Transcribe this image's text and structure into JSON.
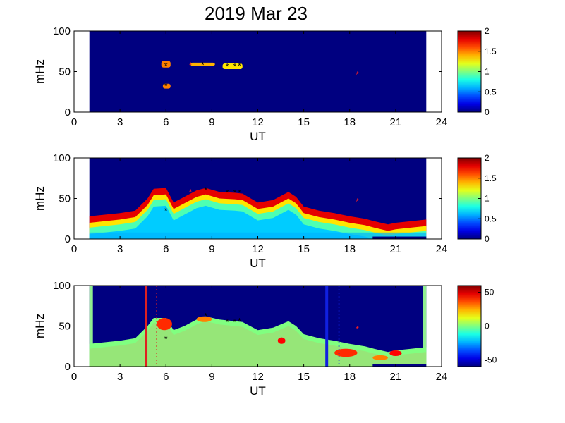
{
  "title": "2019 Mar 23",
  "chart_data": [
    {
      "type": "heatmap",
      "xlabel": "UT",
      "ylabel": "mHz",
      "xlim": [
        0,
        24
      ],
      "ylim": [
        0,
        100
      ],
      "xticks": [
        0,
        3,
        6,
        9,
        12,
        15,
        18,
        21,
        24
      ],
      "yticks": [
        0,
        50,
        100
      ],
      "data_extent_x": [
        1,
        23
      ],
      "colorbar": {
        "range": [
          0,
          2
        ],
        "ticks": [
          0,
          0.5,
          1,
          1.5,
          2
        ]
      },
      "background_level": 0,
      "features": [
        {
          "x0": 5.7,
          "x1": 6.3,
          "y0": 55,
          "y1": 63,
          "level": 1.5
        },
        {
          "x0": 5.8,
          "x1": 6.3,
          "y0": 29,
          "y1": 35,
          "level": 1.5
        },
        {
          "x0": 7.6,
          "x1": 9.2,
          "y0": 57,
          "y1": 61,
          "level": 1.4
        },
        {
          "x0": 9.7,
          "x1": 11.0,
          "y0": 53,
          "y1": 60,
          "level": 1.3
        }
      ],
      "markers_black": [
        [
          6.0,
          57
        ],
        [
          6.0,
          32
        ],
        [
          8.4,
          58
        ],
        [
          10.0,
          56
        ],
        [
          10.5,
          56
        ],
        [
          10.8,
          57
        ]
      ],
      "markers_red": [
        [
          7.6,
          58
        ],
        [
          18.5,
          46
        ]
      ]
    },
    {
      "type": "heatmap",
      "xlabel": "UT",
      "ylabel": "mHz",
      "xlim": [
        0,
        24
      ],
      "ylim": [
        0,
        100
      ],
      "xticks": [
        0,
        3,
        6,
        9,
        12,
        15,
        18,
        21,
        24
      ],
      "yticks": [
        0,
        50,
        100
      ],
      "data_extent_x": [
        1,
        23
      ],
      "colorbar": {
        "range": [
          0,
          2
        ],
        "ticks": [
          0,
          0.5,
          1,
          1.5,
          2
        ]
      },
      "background_level": 0,
      "upper_boundary": [
        [
          1,
          28
        ],
        [
          2,
          30
        ],
        [
          3,
          32
        ],
        [
          4,
          35
        ],
        [
          4.8,
          50
        ],
        [
          5.2,
          62
        ],
        [
          6,
          63
        ],
        [
          6.5,
          45
        ],
        [
          7.2,
          52
        ],
        [
          8,
          60
        ],
        [
          8.6,
          63
        ],
        [
          9.5,
          58
        ],
        [
          10.5,
          57
        ],
        [
          11,
          56
        ],
        [
          12,
          45
        ],
        [
          13,
          48
        ],
        [
          14,
          58
        ],
        [
          14.5,
          52
        ],
        [
          15,
          40
        ],
        [
          16,
          35
        ],
        [
          17,
          32
        ],
        [
          18,
          28
        ],
        [
          19,
          25
        ],
        [
          19.6,
          22
        ],
        [
          20.5,
          18
        ],
        [
          21,
          20
        ],
        [
          22,
          22
        ],
        [
          23,
          24
        ]
      ],
      "layer_levels": [
        1.8,
        1.3,
        0.9,
        0.65
      ],
      "layer_depths": [
        8,
        14,
        22
      ],
      "low_band": {
        "y0": 0,
        "y1": 8,
        "level": 0.6
      },
      "bottom_bar": {
        "x0": 19.5,
        "x1": 23,
        "y0": 0,
        "y1": 3,
        "level": 0
      },
      "markers_black": [
        [
          6.0,
          35
        ],
        [
          8.6,
          60
        ],
        [
          10.0,
          57
        ],
        [
          10.5,
          57
        ],
        [
          10.8,
          57
        ]
      ],
      "markers_red": [
        [
          7.6,
          58
        ],
        [
          18.5,
          46
        ]
      ]
    },
    {
      "type": "heatmap",
      "xlabel": "UT",
      "ylabel": "mHz",
      "xlim": [
        0,
        24
      ],
      "ylim": [
        0,
        100
      ],
      "xticks": [
        0,
        3,
        6,
        9,
        12,
        15,
        18,
        21,
        24
      ],
      "yticks": [
        0,
        50,
        100
      ],
      "data_extent_x": [
        1,
        23
      ],
      "colorbar": {
        "range": [
          -60,
          60
        ],
        "ticks": [
          50,
          0,
          -50
        ]
      },
      "background_level": -60,
      "edge_level": 0,
      "upper_boundary": [
        [
          1,
          28
        ],
        [
          2,
          30
        ],
        [
          3,
          32
        ],
        [
          4,
          35
        ],
        [
          4.8,
          50
        ],
        [
          5.2,
          60
        ],
        [
          6,
          60
        ],
        [
          6.5,
          45
        ],
        [
          7.2,
          50
        ],
        [
          8,
          58
        ],
        [
          8.6,
          62
        ],
        [
          9.5,
          58
        ],
        [
          10.5,
          56
        ],
        [
          11,
          55
        ],
        [
          12,
          45
        ],
        [
          13,
          48
        ],
        [
          14,
          56
        ],
        [
          14.5,
          50
        ],
        [
          15,
          40
        ],
        [
          16,
          35
        ],
        [
          17,
          32
        ],
        [
          18,
          28
        ],
        [
          19,
          25
        ],
        [
          19.6,
          22
        ],
        [
          20.5,
          18
        ],
        [
          21,
          20
        ],
        [
          22,
          22
        ],
        [
          23,
          24
        ]
      ],
      "fill_level": 0,
      "patches": [
        {
          "x0": 5.4,
          "x1": 6.4,
          "y0": 45,
          "y1": 60,
          "level": 40
        },
        {
          "x0": 8.0,
          "x1": 9.0,
          "y0": 55,
          "y1": 62,
          "level": 30
        },
        {
          "x0": 13.3,
          "x1": 13.8,
          "y0": 28,
          "y1": 36,
          "level": 45
        },
        {
          "x0": 17.0,
          "x1": 18.5,
          "y0": 12,
          "y1": 22,
          "level": 40
        },
        {
          "x0": 20.6,
          "x1": 21.4,
          "y0": 13,
          "y1": 20,
          "level": 45
        },
        {
          "x0": 19.5,
          "x1": 20.5,
          "y0": 8,
          "y1": 14,
          "level": 30
        }
      ],
      "vertical_lines": [
        {
          "x": 4.7,
          "color": "#e02020",
          "style": "solid"
        },
        {
          "x": 5.4,
          "color": "#e02020",
          "style": "dotted"
        },
        {
          "x": 16.5,
          "color": "#1020e0",
          "style": "solid"
        },
        {
          "x": 17.3,
          "color": "#1020e0",
          "style": "dotted"
        }
      ],
      "bottom_bar": {
        "x0": 19.5,
        "x1": 23,
        "y0": 0,
        "y1": 3,
        "level": -60
      },
      "markers_black": [
        [
          6.0,
          34
        ],
        [
          8.6,
          62
        ],
        [
          10.0,
          55
        ],
        [
          10.5,
          55
        ],
        [
          10.8,
          56
        ]
      ],
      "markers_red": [
        [
          18.5,
          46
        ]
      ]
    }
  ]
}
